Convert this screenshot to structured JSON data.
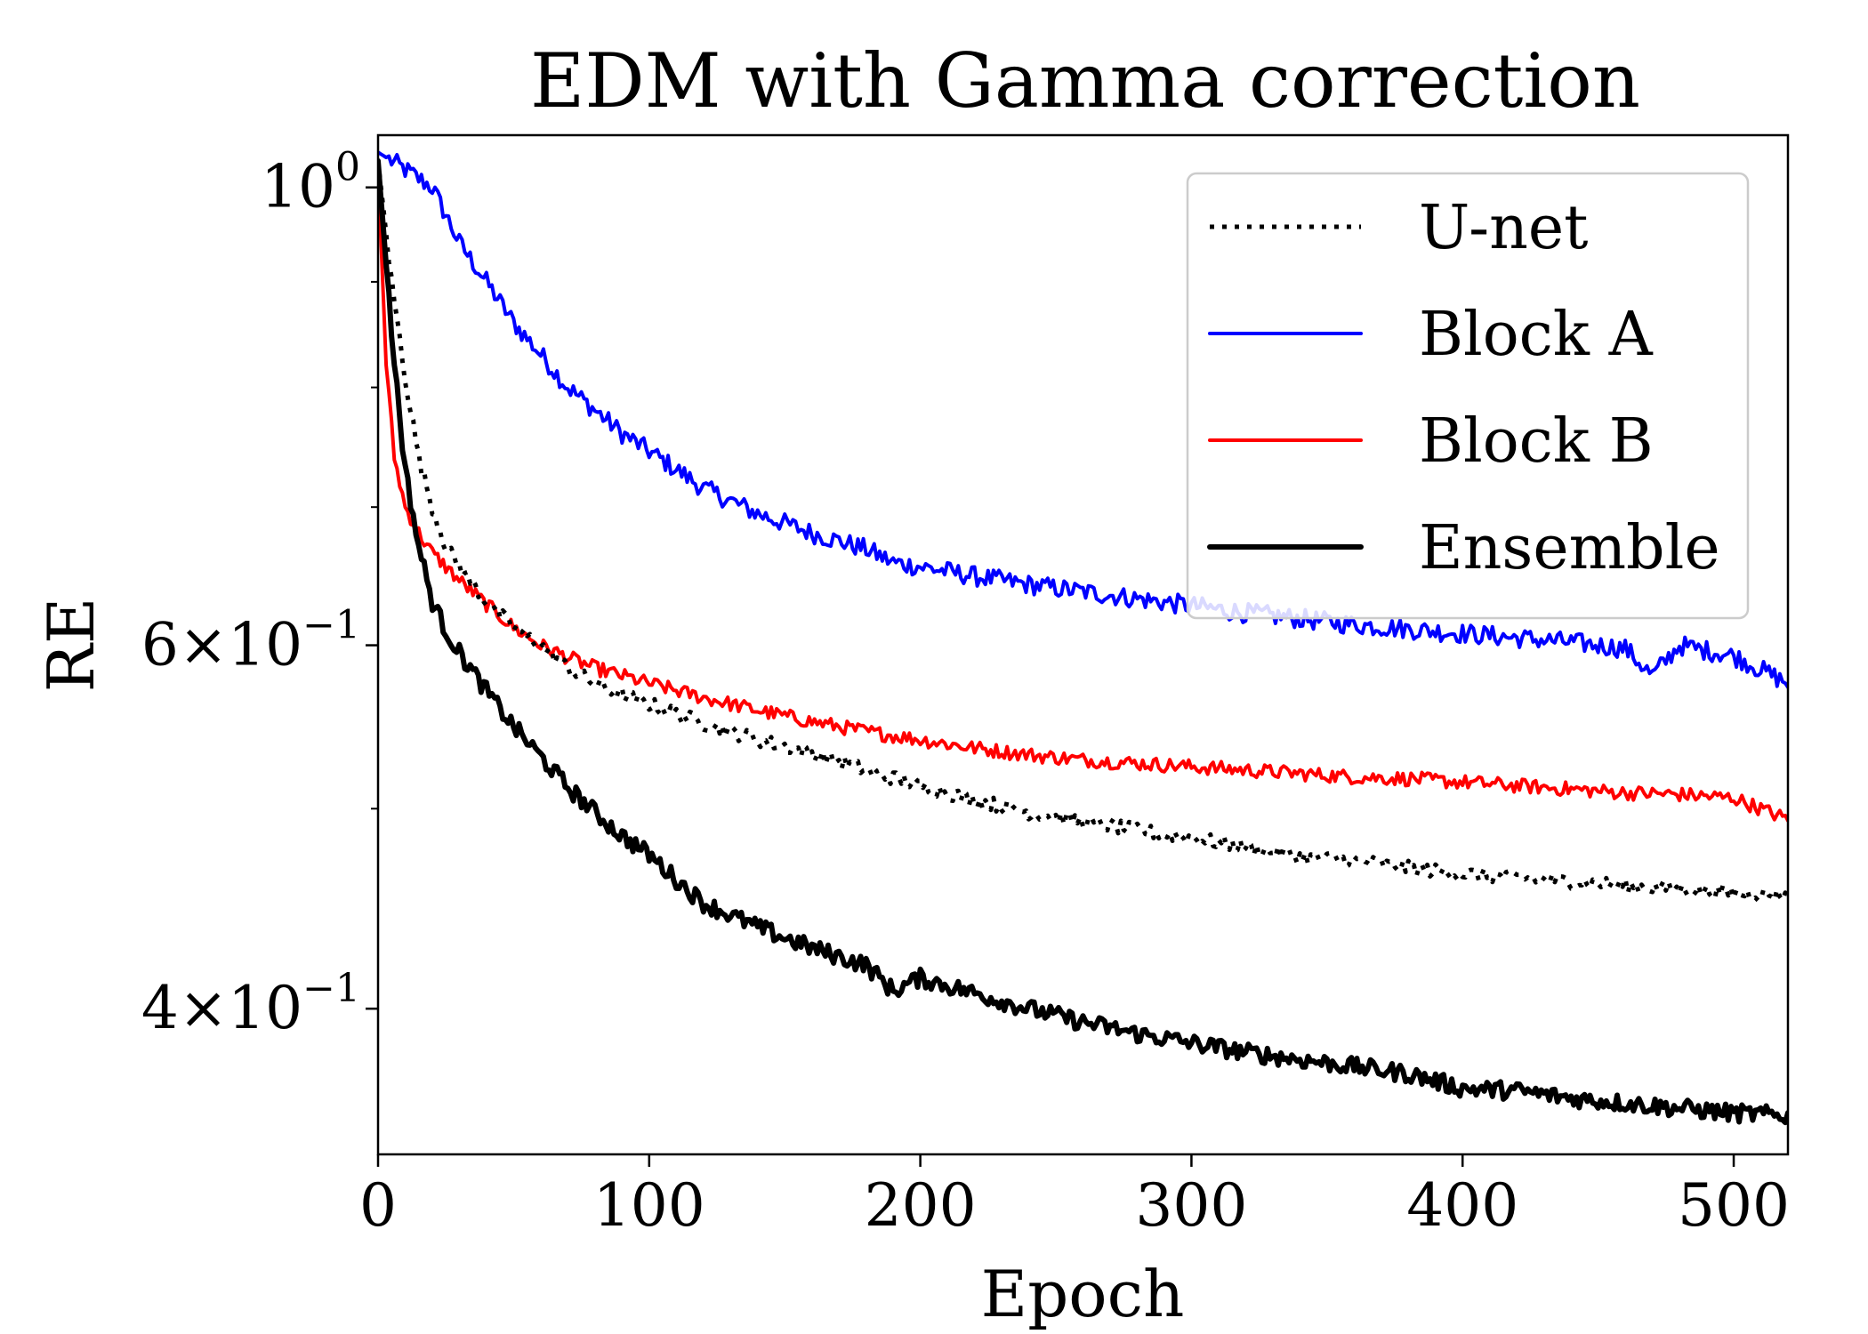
{
  "chart_data": {
    "type": "line",
    "title": "EDM with Gamma correction",
    "xlabel": "Epoch",
    "ylabel": "RE",
    "xlim": [
      0,
      520
    ],
    "ylim": [
      0.34,
      1.06
    ],
    "yscale": "log",
    "x_ticks": [
      0,
      100,
      200,
      300,
      400,
      500
    ],
    "x_tick_labels": [
      "0",
      "100",
      "200",
      "300",
      "400",
      "500"
    ],
    "y_ticks": [
      1.0,
      0.6,
      0.4
    ],
    "y_tick_labels": [
      {
        "base": "10",
        "exp": "0"
      },
      {
        "base": "6×10",
        "exp": "−1"
      },
      {
        "base": "4×10",
        "exp": "−1"
      }
    ],
    "y_minor_ticks": [
      0.9,
      0.8,
      0.7,
      0.5
    ],
    "legend_position": "upper right",
    "series": [
      {
        "name": "U-net",
        "color": "#000000",
        "style": "dotted",
        "x": [
          0,
          5,
          10,
          15,
          20,
          25,
          30,
          40,
          50,
          60,
          70,
          80,
          90,
          100,
          120,
          140,
          160,
          180,
          200,
          220,
          240,
          260,
          280,
          300,
          320,
          340,
          360,
          380,
          400,
          420,
          440,
          460,
          480,
          500,
          520
        ],
        "y": [
          1.03,
          0.9,
          0.81,
          0.74,
          0.7,
          0.67,
          0.655,
          0.63,
          0.612,
          0.6,
          0.585,
          0.575,
          0.568,
          0.562,
          0.55,
          0.54,
          0.532,
          0.522,
          0.513,
          0.505,
          0.498,
          0.493,
          0.488,
          0.484,
          0.479,
          0.474,
          0.472,
          0.468,
          0.465,
          0.463,
          0.461,
          0.459,
          0.457,
          0.455,
          0.454
        ]
      },
      {
        "name": "Block A",
        "color": "#0000ff",
        "style": "solid",
        "x": [
          0,
          10,
          20,
          30,
          40,
          50,
          60,
          70,
          80,
          90,
          100,
          110,
          120,
          140,
          160,
          180,
          190,
          200,
          220,
          240,
          260,
          280,
          300,
          320,
          340,
          360,
          380,
          400,
          420,
          440,
          460,
          470,
          480,
          500,
          520
        ],
        "y": [
          1.04,
          1.02,
          1.0,
          0.94,
          0.9,
          0.86,
          0.83,
          0.8,
          0.78,
          0.76,
          0.745,
          0.73,
          0.715,
          0.695,
          0.68,
          0.668,
          0.658,
          0.655,
          0.648,
          0.642,
          0.637,
          0.632,
          0.627,
          0.622,
          0.618,
          0.614,
          0.611,
          0.608,
          0.605,
          0.602,
          0.598,
          0.58,
          0.6,
          0.593,
          0.575
        ]
      },
      {
        "name": "Block B",
        "color": "#ff0000",
        "style": "solid",
        "x": [
          0,
          3,
          6,
          10,
          15,
          20,
          25,
          30,
          40,
          50,
          60,
          70,
          80,
          100,
          120,
          140,
          160,
          180,
          200,
          220,
          240,
          260,
          280,
          300,
          320,
          340,
          360,
          380,
          400,
          420,
          440,
          460,
          480,
          500,
          520
        ],
        "y": [
          1.02,
          0.82,
          0.74,
          0.7,
          0.68,
          0.665,
          0.655,
          0.645,
          0.628,
          0.612,
          0.6,
          0.592,
          0.585,
          0.575,
          0.566,
          0.558,
          0.551,
          0.545,
          0.54,
          0.535,
          0.531,
          0.528,
          0.526,
          0.524,
          0.522,
          0.52,
          0.518,
          0.517,
          0.515,
          0.513,
          0.511,
          0.509,
          0.508,
          0.506,
          0.494
        ]
      },
      {
        "name": "Ensemble",
        "color": "#000000",
        "style": "solid",
        "x": [
          0,
          5,
          10,
          15,
          20,
          25,
          30,
          40,
          50,
          60,
          70,
          80,
          90,
          100,
          110,
          120,
          140,
          160,
          180,
          190,
          200,
          220,
          240,
          260,
          280,
          300,
          320,
          340,
          360,
          380,
          400,
          420,
          440,
          460,
          480,
          500,
          520
        ],
        "y": [
          1.03,
          0.85,
          0.73,
          0.67,
          0.63,
          0.61,
          0.595,
          0.57,
          0.548,
          0.53,
          0.512,
          0.498,
          0.485,
          0.475,
          0.462,
          0.45,
          0.438,
          0.428,
          0.42,
          0.408,
          0.414,
          0.407,
          0.4,
          0.394,
          0.389,
          0.385,
          0.381,
          0.378,
          0.375,
          0.372,
          0.366,
          0.365,
          0.362,
          0.36,
          0.358,
          0.356,
          0.355
        ]
      }
    ]
  }
}
